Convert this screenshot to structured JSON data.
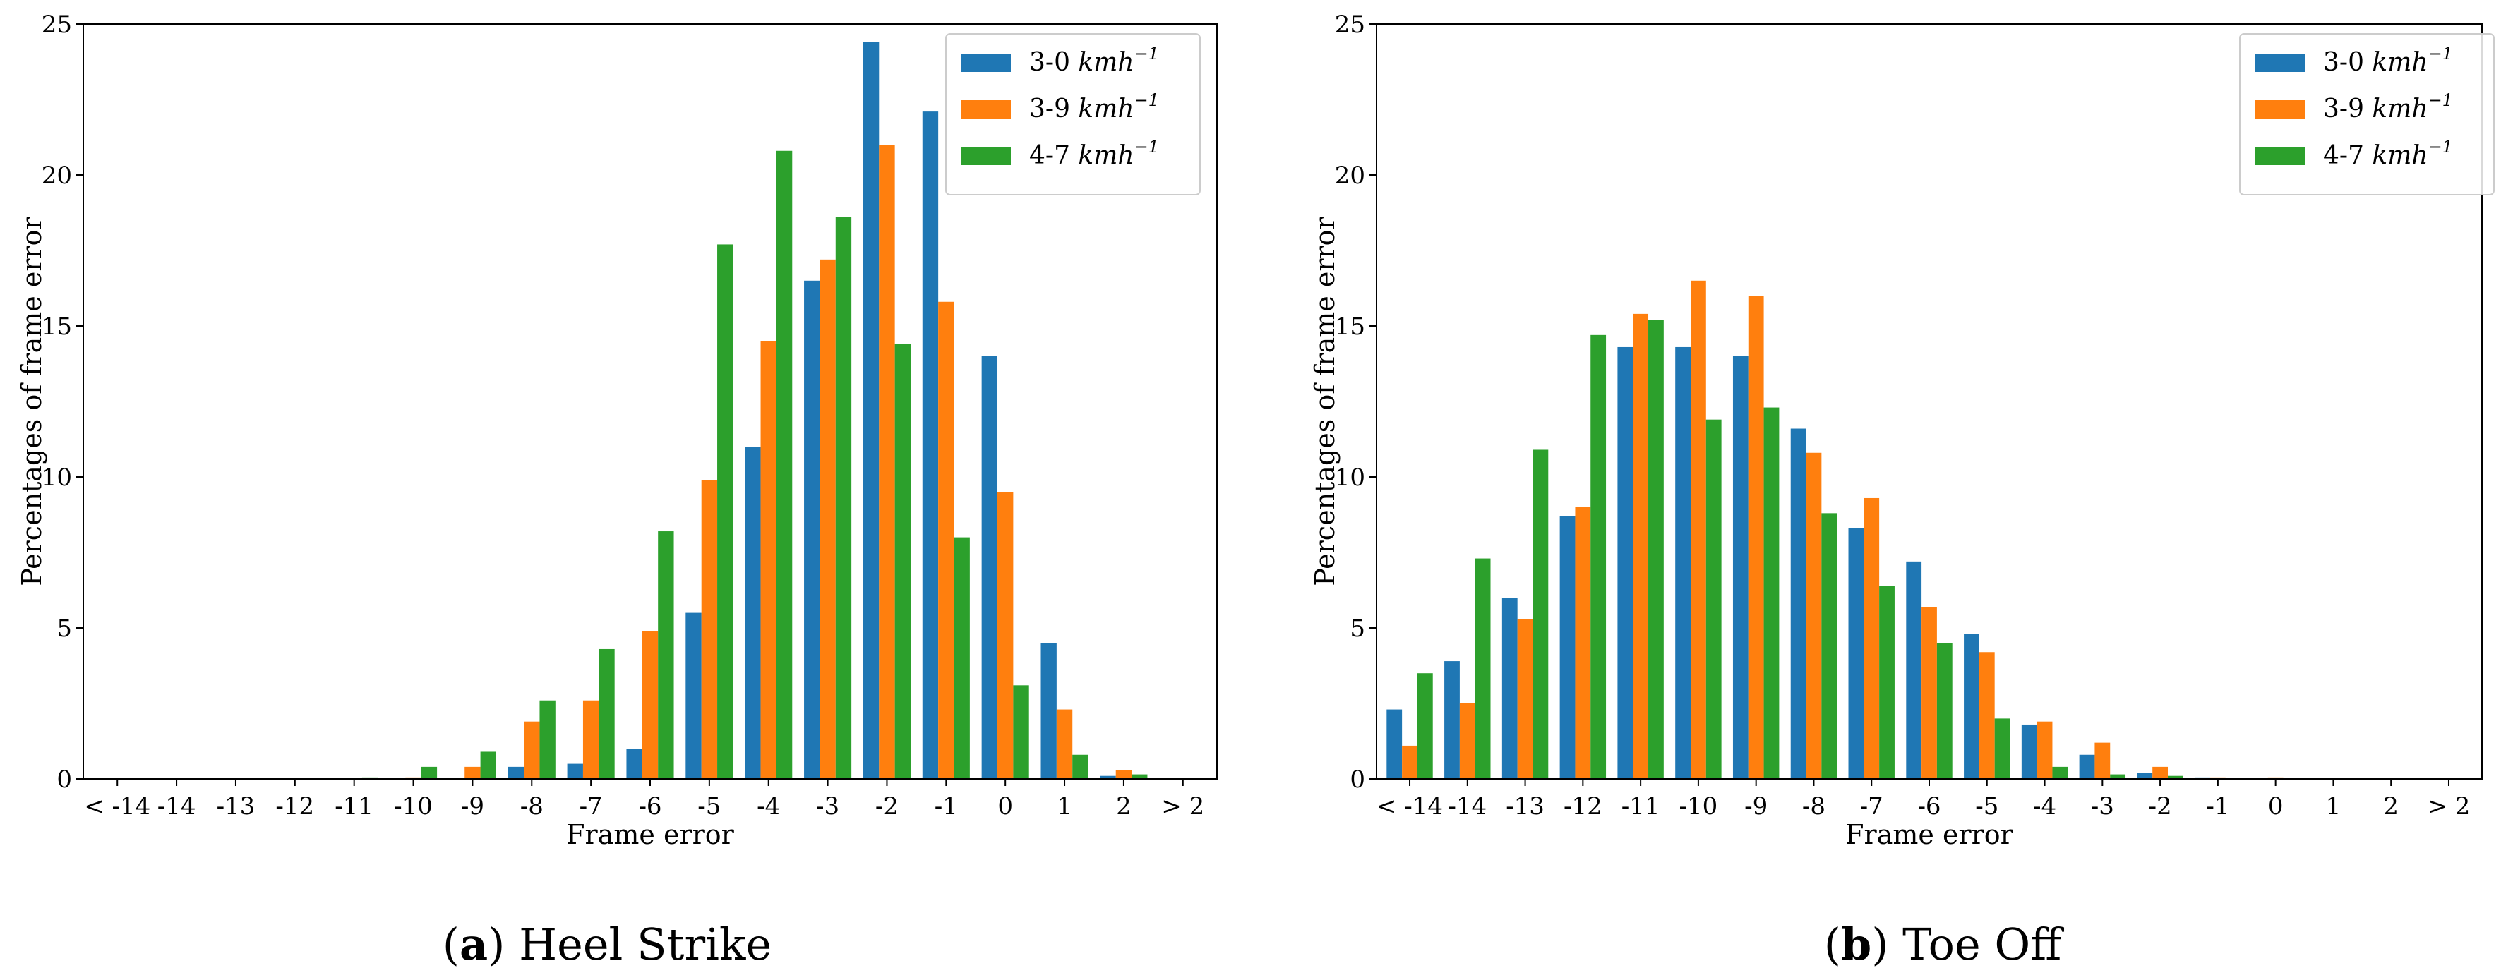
{
  "chart_data": [
    {
      "type": "bar",
      "caption_prefix": "(a)",
      "caption_letter": "a",
      "caption_text": "Heel Strike",
      "title": "",
      "xlabel": "Frame error",
      "ylabel": "Percentages of frame error",
      "categories": [
        "< -14",
        "-14",
        "-13",
        "-12",
        "-11",
        "-10",
        "-9",
        "-8",
        "-7",
        "-6",
        "-5",
        "-4",
        "-3",
        "-2",
        "-1",
        "0",
        "1",
        "2",
        "> 2"
      ],
      "ylim": [
        0,
        25
      ],
      "yticks": [
        0,
        5,
        10,
        15,
        20,
        25
      ],
      "legend_position": "top-right",
      "series": [
        {
          "name": "3-0 kmh",
          "exp": "−1",
          "color": "#1f77b4",
          "values": [
            0,
            0,
            0,
            0,
            0,
            0,
            0,
            0.4,
            0.5,
            1.0,
            5.5,
            11.0,
            16.5,
            24.4,
            22.1,
            14.0,
            4.5,
            0.1,
            0
          ]
        },
        {
          "name": "3-9 kmh",
          "exp": "−1",
          "color": "#ff7f0e",
          "values": [
            0,
            0,
            0,
            0,
            0,
            0.05,
            0.4,
            1.9,
            2.6,
            4.9,
            9.9,
            14.5,
            17.2,
            21.0,
            15.8,
            9.5,
            2.3,
            0.3,
            0
          ]
        },
        {
          "name": "4-7 kmh",
          "exp": "−1",
          "color": "#2ca02c",
          "values": [
            0,
            0,
            0,
            0,
            0.05,
            0.4,
            0.9,
            2.6,
            4.3,
            8.2,
            17.7,
            20.8,
            18.6,
            14.4,
            8.0,
            3.1,
            0.8,
            0.15,
            0
          ]
        }
      ]
    },
    {
      "type": "bar",
      "caption_prefix": "(b)",
      "caption_letter": "b",
      "caption_text": "Toe Off",
      "title": "",
      "xlabel": "Frame error",
      "ylabel": "Percentages of frame error",
      "categories": [
        "< -14",
        "-14",
        "-13",
        "-12",
        "-11",
        "-10",
        "-9",
        "-8",
        "-7",
        "-6",
        "-5",
        "-4",
        "-3",
        "-2",
        "-1",
        "0",
        "1",
        "2",
        "> 2"
      ],
      "ylim": [
        0,
        25
      ],
      "yticks": [
        0,
        5,
        10,
        15,
        20,
        25
      ],
      "legend_position": "top-right",
      "series": [
        {
          "name": "3-0 kmh",
          "exp": "−1",
          "color": "#1f77b4",
          "values": [
            2.3,
            3.9,
            6.0,
            8.7,
            14.3,
            14.3,
            14.0,
            11.6,
            8.3,
            7.2,
            4.8,
            1.8,
            0.8,
            0.2,
            0.05,
            0,
            0,
            0,
            0
          ]
        },
        {
          "name": "3-9 kmh",
          "exp": "−1",
          "color": "#ff7f0e",
          "values": [
            1.1,
            2.5,
            5.3,
            9.0,
            15.4,
            16.5,
            16.0,
            10.8,
            9.3,
            5.7,
            4.2,
            1.9,
            1.2,
            0.4,
            0.05,
            0.05,
            0,
            0,
            0
          ]
        },
        {
          "name": "4-7 kmh",
          "exp": "−1",
          "color": "#2ca02c",
          "values": [
            3.5,
            7.3,
            10.9,
            14.7,
            15.2,
            11.9,
            12.3,
            8.8,
            6.4,
            4.5,
            2.0,
            0.4,
            0.15,
            0.1,
            0,
            0,
            0,
            0,
            0
          ]
        }
      ]
    }
  ]
}
